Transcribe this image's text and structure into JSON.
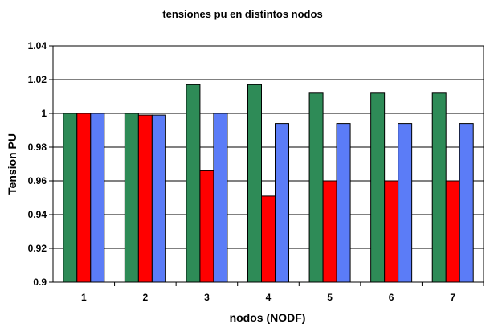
{
  "chart_data": {
    "type": "bar",
    "title": "tensiones pu en distintos nodos",
    "xlabel": "nodos (NODF)",
    "ylabel": "Tension PU",
    "categories": [
      "1",
      "2",
      "3",
      "4",
      "5",
      "6",
      "7"
    ],
    "series": [
      {
        "color": "#2e8b57",
        "values": [
          1.0,
          1.0,
          1.017,
          1.017,
          1.012,
          1.012,
          1.012
        ]
      },
      {
        "color": "#ff0000",
        "values": [
          1.0,
          0.999,
          0.966,
          0.951,
          0.96,
          0.96,
          0.96
        ]
      },
      {
        "color": "#5b7cf7",
        "values": [
          1.0,
          0.999,
          1.0,
          0.994,
          0.994,
          0.994,
          0.994
        ]
      }
    ],
    "ylim": [
      0.9,
      1.04
    ],
    "yticks": [
      "0.9",
      "0.92",
      "0.94",
      "0.96",
      "0.98",
      "1",
      "1.02",
      "1.04"
    ],
    "grid": true,
    "legend": "none"
  }
}
